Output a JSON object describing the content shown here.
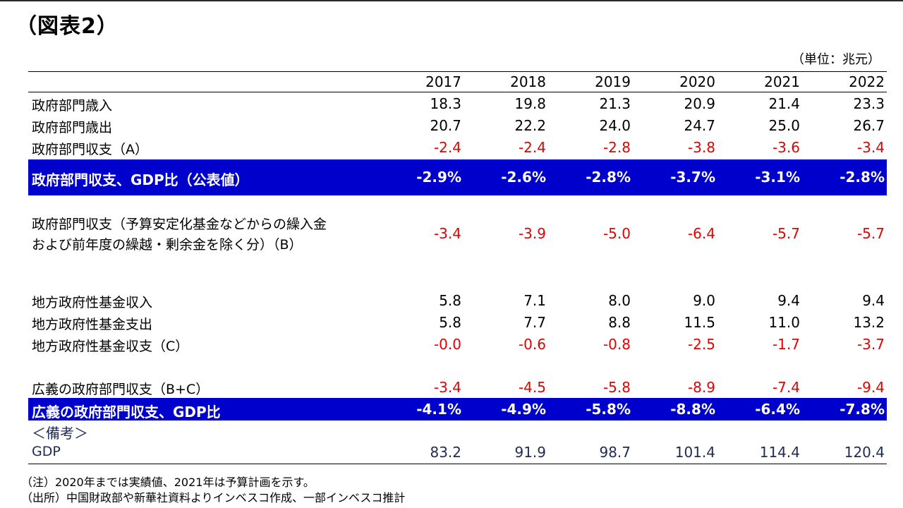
{
  "title": "（図表2）",
  "unit": "（単位：兆元）",
  "chart_data": {
    "type": "table",
    "columns": [
      "2017",
      "2018",
      "2019",
      "2020",
      "2021",
      "2022"
    ],
    "rows": [
      {
        "label": "政府部門歳入",
        "values": [
          "18.3",
          "19.8",
          "21.3",
          "20.9",
          "21.4",
          "23.3"
        ]
      },
      {
        "label": "政府部門歳出",
        "values": [
          "20.7",
          "22.2",
          "24.0",
          "24.7",
          "25.0",
          "26.7"
        ]
      },
      {
        "label": "政府部門収支（A）",
        "values": [
          "-2.4",
          "-2.4",
          "-2.8",
          "-3.8",
          "-3.6",
          "-3.4"
        ]
      },
      {
        "label": "政府部門収支、GDP比（公表値）",
        "values": [
          "-2.9%",
          "-2.6%",
          "-2.8%",
          "-3.7%",
          "-3.1%",
          "-2.8%"
        ]
      },
      {
        "label_lines": [
          "政府部門収支（予算安定化基金などからの繰入金",
          "および前年度の繰越・剰余金を除く分）（B）"
        ],
        "values": [
          "-3.4",
          "-3.9",
          "-5.0",
          "-6.4",
          "-5.7",
          "-5.7"
        ]
      },
      {
        "label": "地方政府性基金収入",
        "values": [
          "5.8",
          "7.1",
          "8.0",
          "9.0",
          "9.4",
          "9.4"
        ]
      },
      {
        "label": "地方政府性基金支出",
        "values": [
          "5.8",
          "7.7",
          "8.8",
          "11.5",
          "11.0",
          "13.2"
        ]
      },
      {
        "label": "地方政府性基金収支（C）",
        "values": [
          "-0.0",
          "-0.6",
          "-0.8",
          "-2.5",
          "-1.7",
          "-3.7"
        ]
      },
      {
        "label": "広義の政府部門収支（B+C）",
        "values": [
          "-3.4",
          "-4.5",
          "-5.8",
          "-8.9",
          "-7.4",
          "-9.4"
        ]
      },
      {
        "label": "広義の政府部門収支、GDP比",
        "values": [
          "-4.1%",
          "-4.9%",
          "-5.8%",
          "-8.8%",
          "-6.4%",
          "-7.8%"
        ]
      },
      {
        "label": "＜備考＞",
        "values": []
      },
      {
        "label": "GDP",
        "values": [
          "83.2",
          "91.9",
          "98.7",
          "101.4",
          "114.4",
          "120.4"
        ]
      }
    ]
  },
  "notes": [
    "（注）2020年までは実績値、2021年は予算計画を示す。",
    "（出所）中国財政部や新華社資料よりインベスコ作成、一部インベスコ推計"
  ],
  "colors": {
    "highlight_bg": "#0000cc",
    "negative": "#e60000",
    "text": "#000000"
  }
}
